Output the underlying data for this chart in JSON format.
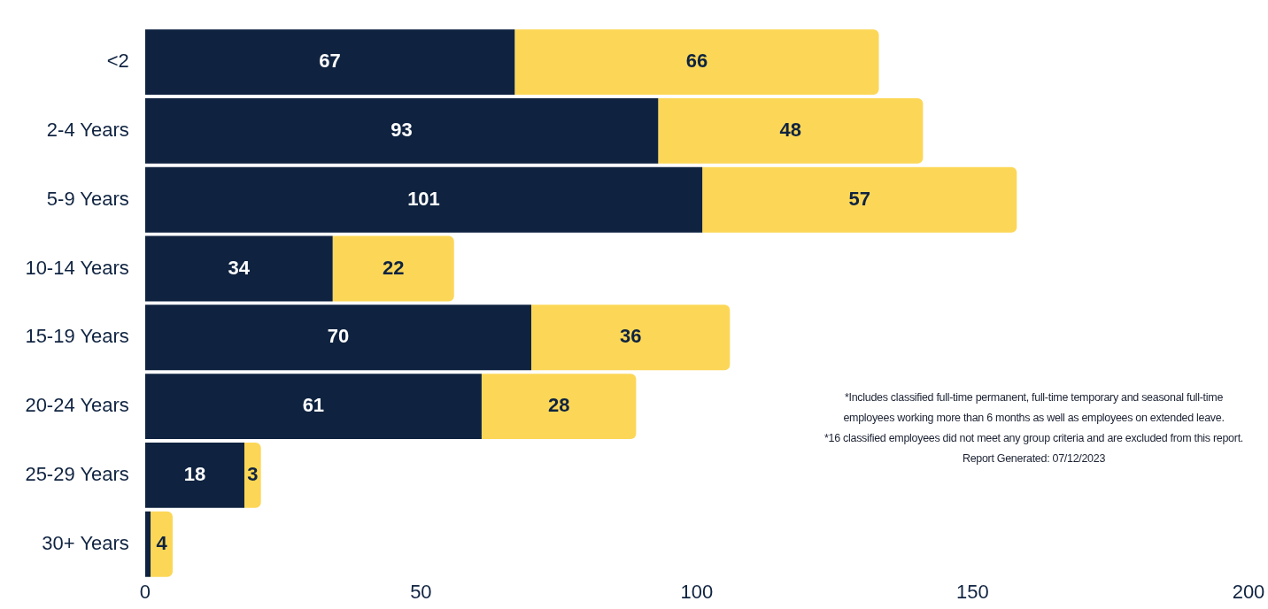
{
  "chart_data": {
    "type": "bar",
    "orientation": "horizontal",
    "stacked": true,
    "categories": [
      "<2",
      "2-4 Years",
      "5-9 Years",
      "10-14 Years",
      "15-19 Years",
      "20-24 Years",
      "25-29 Years",
      "30+ Years"
    ],
    "series": [
      {
        "color": "#0f2340",
        "values": [
          67,
          93,
          101,
          34,
          70,
          61,
          18,
          1
        ],
        "value_labels": [
          "67",
          "93",
          "101",
          "34",
          "70",
          "61",
          "18",
          null
        ]
      },
      {
        "color": "#fcd757",
        "values": [
          66,
          48,
          57,
          22,
          36,
          28,
          3,
          4
        ],
        "value_labels": [
          "66",
          "48",
          "57",
          "22",
          "36",
          "28",
          "3",
          "4"
        ]
      }
    ],
    "xlim": [
      0,
      200
    ],
    "xticks": [
      0,
      50,
      100,
      150,
      200
    ],
    "grid": false,
    "legend": false,
    "annotations": [
      "*Includes classified full-time permanent, full-time temporary and seasonal full-time employees working more than 6 months as well as employees on extended leave.",
      "*16 classified employees did not meet any group criteria and are excluded from this report.",
      "Report Generated: 07/12/2023"
    ]
  }
}
